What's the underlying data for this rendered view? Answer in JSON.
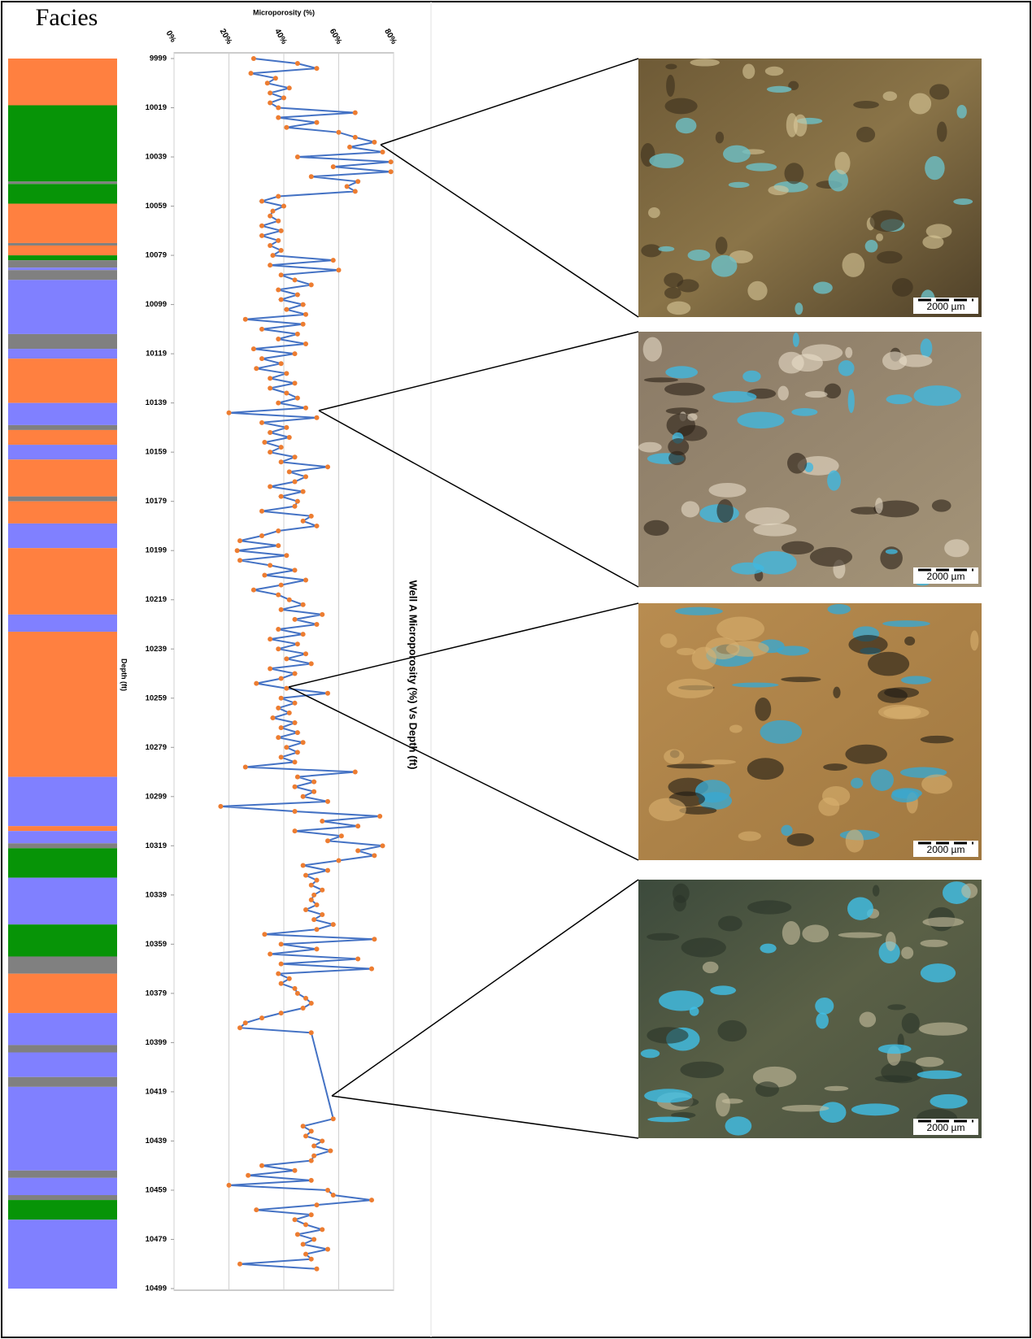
{
  "facies": {
    "title": "Facies",
    "intervals": [
      {
        "top": 9999,
        "base": 10018,
        "color": "#ff8040"
      },
      {
        "top": 10018,
        "base": 10049,
        "color": "#079407"
      },
      {
        "top": 10049,
        "base": 10050,
        "color": "#808080"
      },
      {
        "top": 10050,
        "base": 10058,
        "color": "#079407"
      },
      {
        "top": 10058,
        "base": 10074,
        "color": "#ff8040"
      },
      {
        "top": 10074,
        "base": 10075,
        "color": "#808080"
      },
      {
        "top": 10075,
        "base": 10079,
        "color": "#ff8040"
      },
      {
        "top": 10079,
        "base": 10081,
        "color": "#079407"
      },
      {
        "top": 10081,
        "base": 10084,
        "color": "#808080"
      },
      {
        "top": 10084,
        "base": 10085,
        "color": "#8080ff"
      },
      {
        "top": 10085,
        "base": 10089,
        "color": "#808080"
      },
      {
        "top": 10089,
        "base": 10111,
        "color": "#8080ff"
      },
      {
        "top": 10111,
        "base": 10117,
        "color": "#808080"
      },
      {
        "top": 10117,
        "base": 10121,
        "color": "#8080ff"
      },
      {
        "top": 10121,
        "base": 10139,
        "color": "#ff8040"
      },
      {
        "top": 10139,
        "base": 10148,
        "color": "#8080ff"
      },
      {
        "top": 10148,
        "base": 10150,
        "color": "#808080"
      },
      {
        "top": 10150,
        "base": 10156,
        "color": "#ff8040"
      },
      {
        "top": 10156,
        "base": 10162,
        "color": "#8080ff"
      },
      {
        "top": 10162,
        "base": 10177,
        "color": "#ff8040"
      },
      {
        "top": 10177,
        "base": 10179,
        "color": "#808080"
      },
      {
        "top": 10179,
        "base": 10188,
        "color": "#ff8040"
      },
      {
        "top": 10188,
        "base": 10198,
        "color": "#8080ff"
      },
      {
        "top": 10198,
        "base": 10225,
        "color": "#ff8040"
      },
      {
        "top": 10225,
        "base": 10232,
        "color": "#8080ff"
      },
      {
        "top": 10232,
        "base": 10291,
        "color": "#ff8040"
      },
      {
        "top": 10291,
        "base": 10311,
        "color": "#8080ff"
      },
      {
        "top": 10311,
        "base": 10313,
        "color": "#ff8040"
      },
      {
        "top": 10313,
        "base": 10318,
        "color": "#8080ff"
      },
      {
        "top": 10318,
        "base": 10320,
        "color": "#808080"
      },
      {
        "top": 10320,
        "base": 10332,
        "color": "#079407"
      },
      {
        "top": 10332,
        "base": 10351,
        "color": "#8080ff"
      },
      {
        "top": 10351,
        "base": 10364,
        "color": "#079407"
      },
      {
        "top": 10364,
        "base": 10371,
        "color": "#808080"
      },
      {
        "top": 10371,
        "base": 10387,
        "color": "#ff8040"
      },
      {
        "top": 10387,
        "base": 10400,
        "color": "#8080ff"
      },
      {
        "top": 10400,
        "base": 10403,
        "color": "#808080"
      },
      {
        "top": 10403,
        "base": 10413,
        "color": "#8080ff"
      },
      {
        "top": 10413,
        "base": 10417,
        "color": "#808080"
      },
      {
        "top": 10417,
        "base": 10451,
        "color": "#8080ff"
      },
      {
        "top": 10451,
        "base": 10454,
        "color": "#808080"
      },
      {
        "top": 10454,
        "base": 10461,
        "color": "#8080ff"
      },
      {
        "top": 10461,
        "base": 10463,
        "color": "#808080"
      },
      {
        "top": 10463,
        "base": 10471,
        "color": "#079407"
      },
      {
        "top": 10471,
        "base": 10499,
        "color": "#8080ff"
      }
    ]
  },
  "chart_data": {
    "type": "line",
    "title": "Well A Microporosity (%) Vs Depth (ft)",
    "line_color": "#4472c4",
    "marker_color": "#ed7d31",
    "grid": true,
    "value_axis": {
      "label": "Microporosity (%)",
      "lim": [
        0,
        80
      ],
      "ticks": [
        {
          "value": 0,
          "label": "0%"
        },
        {
          "value": 20,
          "label": "20%"
        },
        {
          "value": 40,
          "label": "40%"
        },
        {
          "value": 60,
          "label": "60%"
        },
        {
          "value": 80,
          "label": "80%"
        }
      ]
    },
    "depth_axis": {
      "label": "Depth (ft)",
      "lim": [
        9999,
        10499
      ],
      "ticks": [
        9999,
        10019,
        10039,
        10059,
        10079,
        10099,
        10119,
        10139,
        10159,
        10179,
        10199,
        10219,
        10239,
        10259,
        10279,
        10299,
        10319,
        10339,
        10359,
        10379,
        10399,
        10419,
        10439,
        10459,
        10479,
        10499
      ]
    },
    "depths": [
      9999,
      10001,
      10003,
      10005,
      10007,
      10009,
      10011,
      10013,
      10015,
      10017,
      10019,
      10021,
      10023,
      10025,
      10027,
      10029,
      10031,
      10033,
      10035,
      10037,
      10039,
      10041,
      10043,
      10045,
      10047,
      10049,
      10051,
      10053,
      10055,
      10057,
      10059,
      10061,
      10063,
      10065,
      10067,
      10069,
      10071,
      10073,
      10075,
      10077,
      10079,
      10081,
      10083,
      10085,
      10087,
      10089,
      10091,
      10093,
      10095,
      10097,
      10099,
      10101,
      10103,
      10105,
      10107,
      10109,
      10111,
      10113,
      10115,
      10117,
      10119,
      10121,
      10123,
      10125,
      10127,
      10129,
      10131,
      10133,
      10135,
      10137,
      10139,
      10141,
      10143,
      10145,
      10147,
      10149,
      10151,
      10153,
      10155,
      10157,
      10159,
      10161,
      10163,
      10165,
      10167,
      10169,
      10171,
      10173,
      10175,
      10177,
      10179,
      10181,
      10183,
      10185,
      10187,
      10189,
      10191,
      10193,
      10195,
      10197,
      10199,
      10201,
      10203,
      10205,
      10207,
      10209,
      10211,
      10213,
      10215,
      10217,
      10219,
      10221,
      10223,
      10225,
      10227,
      10229,
      10231,
      10233,
      10235,
      10237,
      10239,
      10241,
      10243,
      10245,
      10247,
      10249,
      10251,
      10253,
      10255,
      10257,
      10259,
      10261,
      10263,
      10265,
      10267,
      10269,
      10271,
      10273,
      10275,
      10277,
      10279,
      10281,
      10283,
      10285,
      10287,
      10289,
      10291,
      10293,
      10295,
      10297,
      10299,
      10301,
      10303,
      10305,
      10307,
      10309,
      10311,
      10313,
      10315,
      10317,
      10319,
      10321,
      10323,
      10325,
      10327,
      10329,
      10331,
      10333,
      10335,
      10337,
      10339,
      10341,
      10343,
      10345,
      10347,
      10349,
      10351,
      10353,
      10355,
      10357,
      10359,
      10361,
      10363,
      10365,
      10367,
      10369,
      10371,
      10373,
      10375,
      10377,
      10379,
      10381,
      10383,
      10385,
      10387,
      10389,
      10391,
      10393,
      10395,
      10430,
      10433,
      10435,
      10437,
      10439,
      10441,
      10443,
      10445,
      10447,
      10449,
      10451,
      10453,
      10455,
      10457,
      10459,
      10461,
      10463,
      10465,
      10467,
      10469,
      10471,
      10473,
      10475,
      10477,
      10479,
      10481,
      10483,
      10485,
      10487,
      10489,
      10491
    ],
    "values": [
      29,
      45,
      52,
      28,
      37,
      34,
      42,
      35,
      40,
      35,
      38,
      66,
      38,
      52,
      41,
      60,
      66,
      73,
      64,
      76,
      45,
      79,
      58,
      79,
      50,
      67,
      63,
      66,
      38,
      32,
      40,
      36,
      35,
      38,
      32,
      39,
      32,
      38,
      35,
      39,
      36,
      58,
      35,
      60,
      39,
      44,
      50,
      38,
      45,
      39,
      47,
      41,
      48,
      26,
      47,
      32,
      45,
      38,
      48,
      29,
      44,
      32,
      39,
      30,
      41,
      35,
      44,
      35,
      41,
      45,
      38,
      48,
      20,
      52,
      32,
      41,
      35,
      42,
      33,
      39,
      35,
      44,
      39,
      56,
      42,
      48,
      44,
      35,
      47,
      39,
      45,
      44,
      32,
      50,
      47,
      52,
      38,
      32,
      24,
      38,
      23,
      41,
      24,
      35,
      44,
      33,
      48,
      39,
      29,
      38,
      42,
      47,
      39,
      54,
      44,
      52,
      38,
      47,
      35,
      45,
      38,
      48,
      41,
      50,
      35,
      44,
      39,
      30,
      41,
      56,
      39,
      44,
      38,
      42,
      36,
      44,
      39,
      45,
      38,
      47,
      41,
      45,
      39,
      44,
      26,
      66,
      45,
      51,
      44,
      51,
      47,
      56,
      17,
      44,
      75,
      54,
      67,
      44,
      61,
      56,
      76,
      67,
      73,
      60,
      47,
      56,
      48,
      52,
      50,
      54,
      51,
      50,
      52,
      48,
      54,
      51,
      58,
      52,
      33,
      73,
      39,
      52,
      35,
      67,
      39,
      72,
      38,
      42,
      39,
      44,
      45,
      48,
      50,
      47,
      39,
      32,
      26,
      24,
      50,
      58,
      47,
      50,
      48,
      54,
      51,
      57,
      51,
      50,
      32,
      44,
      27,
      50,
      20,
      56,
      58,
      72,
      52,
      30,
      50,
      44,
      48,
      54,
      45,
      51,
      47,
      56,
      48,
      50,
      24,
      52
    ]
  },
  "photos": [
    {
      "scale_label": "2000 µm"
    },
    {
      "scale_label": "2000 µm"
    },
    {
      "scale_label": "2000 µm"
    },
    {
      "scale_label": "2000 µm"
    }
  ]
}
